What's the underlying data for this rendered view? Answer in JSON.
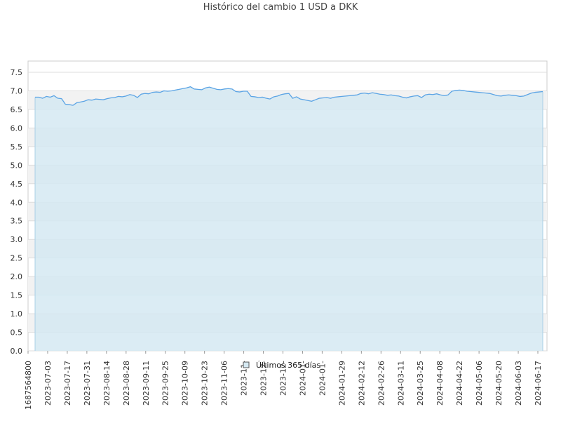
{
  "chart_data": {
    "type": "area",
    "title": "Histórico del cambio 1 USD a DKK",
    "xlabel": "",
    "ylabel": "",
    "ylim": [
      0,
      7.5
    ],
    "y_ticks": [
      "0.0",
      "0.5",
      "1.0",
      "1.5",
      "2.0",
      "2.5",
      "3.0",
      "3.5",
      "4.0",
      "4.5",
      "5.0",
      "5.5",
      "6.0",
      "6.5",
      "7.0",
      "7.5"
    ],
    "x_tick_labels": [
      "1687564800",
      "2023-07-03",
      "2023-07-17",
      "2023-07-31",
      "2023-08-14",
      "2023-08-28",
      "2023-09-11",
      "2023-09-25",
      "2023-10-09",
      "2023-10-23",
      "2023-11-06",
      "2023-11-",
      "2023-12-",
      "2023-12-",
      "2024-01-",
      "2024-01-",
      "2024-01-29",
      "2024-02-12",
      "2024-02-26",
      "2024-03-11",
      "2024-03-25",
      "2024-04-08",
      "2024-04-22",
      "2024-05-06",
      "2024-05-20",
      "2024-06-03",
      "2024-06-17"
    ],
    "grid": true,
    "legend_position": "bottom-center",
    "series": [
      {
        "name": "Últimos 365 días",
        "color": "#5ba4e5",
        "fill": "#d5e9f2",
        "x_start": "2023-06-24",
        "x_end": "2024-06-23",
        "values": [
          6.83,
          6.83,
          6.8,
          6.85,
          6.83,
          6.87,
          6.8,
          6.79,
          6.64,
          6.63,
          6.61,
          6.68,
          6.7,
          6.72,
          6.76,
          6.75,
          6.78,
          6.77,
          6.76,
          6.79,
          6.81,
          6.82,
          6.85,
          6.84,
          6.86,
          6.9,
          6.88,
          6.82,
          6.91,
          6.93,
          6.92,
          6.96,
          6.97,
          6.96,
          7.0,
          6.99,
          7.0,
          7.02,
          7.04,
          7.06,
          7.08,
          7.11,
          7.05,
          7.04,
          7.03,
          7.08,
          7.1,
          7.07,
          7.04,
          7.03,
          7.05,
          7.06,
          7.05,
          6.98,
          6.97,
          6.99,
          6.99,
          6.85,
          6.84,
          6.82,
          6.83,
          6.8,
          6.78,
          6.84,
          6.86,
          6.9,
          6.92,
          6.93,
          6.8,
          6.84,
          6.78,
          6.76,
          6.74,
          6.72,
          6.76,
          6.8,
          6.81,
          6.82,
          6.8,
          6.83,
          6.84,
          6.85,
          6.86,
          6.87,
          6.88,
          6.89,
          6.93,
          6.94,
          6.92,
          6.95,
          6.93,
          6.91,
          6.9,
          6.88,
          6.89,
          6.87,
          6.86,
          6.83,
          6.81,
          6.84,
          6.86,
          6.87,
          6.82,
          6.89,
          6.91,
          6.9,
          6.92,
          6.89,
          6.87,
          6.89,
          6.99,
          7.01,
          7.02,
          7.01,
          6.99,
          6.98,
          6.97,
          6.96,
          6.95,
          6.94,
          6.93,
          6.9,
          6.87,
          6.86,
          6.88,
          6.89,
          6.88,
          6.87,
          6.85,
          6.86,
          6.9,
          6.94,
          6.96,
          6.97,
          6.98
        ]
      }
    ]
  }
}
